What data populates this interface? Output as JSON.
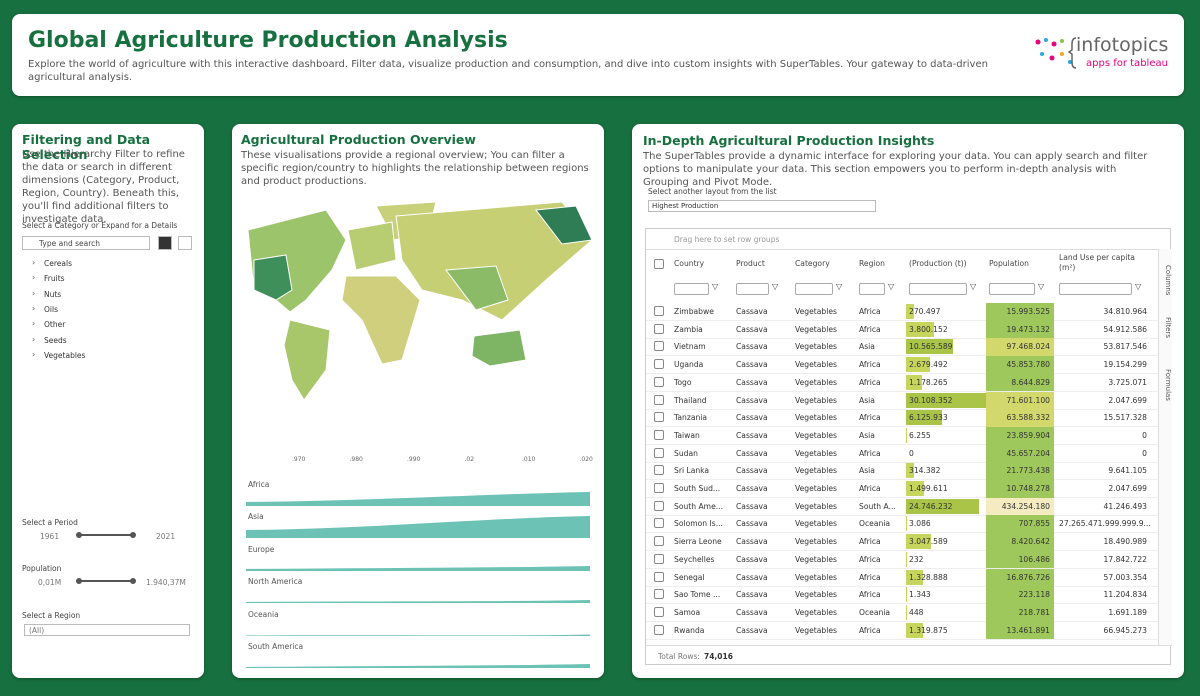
{
  "header": {
    "title": "Global Agriculture Production Analysis",
    "description": "Explore the world of agriculture with this interactive dashboard. Filter data, visualize production and consumption, and dive into custom insights with SuperTables. Your gateway to data-driven agricultural analysis.",
    "logo": {
      "name": "infotopics",
      "tagline": "apps for tableau"
    }
  },
  "filter_panel": {
    "title": "Filtering and Data Selection",
    "description": "Use the Hierarchy Filter to refine the data or search in different dimensions (Category, Product, Region, Country). Beneath this, you'll find additional filters to investigate data.",
    "select_label": "Select a Category or Expand for a Details",
    "search_placeholder": "Type and search",
    "tree": [
      "Cereals",
      "Fruits",
      "Nuts",
      "Oils",
      "Other",
      "Seeds",
      "Vegetables"
    ],
    "period": {
      "label": "Select a Period",
      "min": "1961",
      "max": "2021"
    },
    "population": {
      "label": "Population",
      "min": "0,01M",
      "max": "1.940,37M"
    },
    "region": {
      "label": "Select a Region",
      "value": "(All)"
    }
  },
  "overview": {
    "title": "Agricultural Production Overview",
    "description": "These visualisations provide a regional overview; You can filter a specific region/country to highlights the relationship between regions and product productions.",
    "timeline_ticks": [
      ".970",
      ".980",
      ".990",
      ".02",
      ".010",
      ".020"
    ],
    "regions": [
      "Africa",
      "Asia",
      "Europe",
      "North America",
      "Oceania",
      "South America"
    ]
  },
  "insights": {
    "title": "In-Depth Agricultural Production Insights",
    "description": "The SuperTables provide a dynamic interface for exploring your data. You can apply search and filter options to manipulate your data. This section empowers you to perform in-depth analysis with Grouping and Pivot Mode.",
    "layout_label": "Select another layout from the list",
    "layout_value": "Highest Production",
    "group_hint": "Drag here to set row groups",
    "side_tabs": [
      "Columns",
      "Filters",
      "Formulas"
    ],
    "table": {
      "columns": [
        "Country",
        "Product",
        "Category",
        "Region",
        "(Production (t))",
        "Population",
        "Land Use per capita (m²)"
      ],
      "rows": [
        [
          "Zimbabwe",
          "Cassava",
          "Vegetables",
          "Africa",
          "270.497",
          "15.993.525",
          "34.810.964"
        ],
        [
          "Zambia",
          "Cassava",
          "Vegetables",
          "Africa",
          "3.800.152",
          "19.473.132",
          "54.912.586"
        ],
        [
          "Vietnam",
          "Cassava",
          "Vegetables",
          "Asia",
          "10.565.589",
          "97.468.024",
          "53.817.546"
        ],
        [
          "Uganda",
          "Cassava",
          "Vegetables",
          "Africa",
          "2.679.492",
          "45.853.780",
          "19.154.299"
        ],
        [
          "Togo",
          "Cassava",
          "Vegetables",
          "Africa",
          "1.178.265",
          "8.644.829",
          "3.725.071"
        ],
        [
          "Thailand",
          "Cassava",
          "Vegetables",
          "Asia",
          "30.108.352",
          "71.601.100",
          "2.047.699"
        ],
        [
          "Tanzania",
          "Cassava",
          "Vegetables",
          "Africa",
          "6.125.933",
          "63.588.332",
          "15.517.328"
        ],
        [
          "Taiwan",
          "Cassava",
          "Vegetables",
          "Asia",
          "6.255",
          "23.859.904",
          "0"
        ],
        [
          "Sudan",
          "Cassava",
          "Vegetables",
          "Africa",
          "0",
          "45.657.204",
          "0"
        ],
        [
          "Sri Lanka",
          "Cassava",
          "Vegetables",
          "Asia",
          "314.382",
          "21.773.438",
          "9.641.105"
        ],
        [
          "South Sud...",
          "Cassava",
          "Vegetables",
          "Africa",
          "1.499.611",
          "10.748.278",
          "2.047.699"
        ],
        [
          "South Ame...",
          "Cassava",
          "Vegetables",
          "South A...",
          "24.746.232",
          "434.254.180",
          "41.246.493"
        ],
        [
          "Solomon Is...",
          "Cassava",
          "Vegetables",
          "Oceania",
          "3.086",
          "707.855",
          "27.265.471.999.999.9..."
        ],
        [
          "Sierra Leone",
          "Cassava",
          "Vegetables",
          "Africa",
          "3.047.589",
          "8.420.642",
          "18.490.989"
        ],
        [
          "Seychelles",
          "Cassava",
          "Vegetables",
          "Africa",
          "232",
          "106.486",
          "17.842.722"
        ],
        [
          "Senegal",
          "Cassava",
          "Vegetables",
          "Africa",
          "1.328.888",
          "16.876.726",
          "57.003.354"
        ],
        [
          "Sao Tome ...",
          "Cassava",
          "Vegetables",
          "Africa",
          "1.343",
          "223.118",
          "11.204.834"
        ],
        [
          "Samoa",
          "Cassava",
          "Vegetables",
          "Oceania",
          "448",
          "218.781",
          "1.691.189"
        ],
        [
          "Rwanda",
          "Cassava",
          "Vegetables",
          "Africa",
          "1.319.875",
          "13.461.891",
          "66.945.273"
        ]
      ]
    },
    "footer": {
      "label": "Total Rows:",
      "value": "74,016"
    }
  }
}
